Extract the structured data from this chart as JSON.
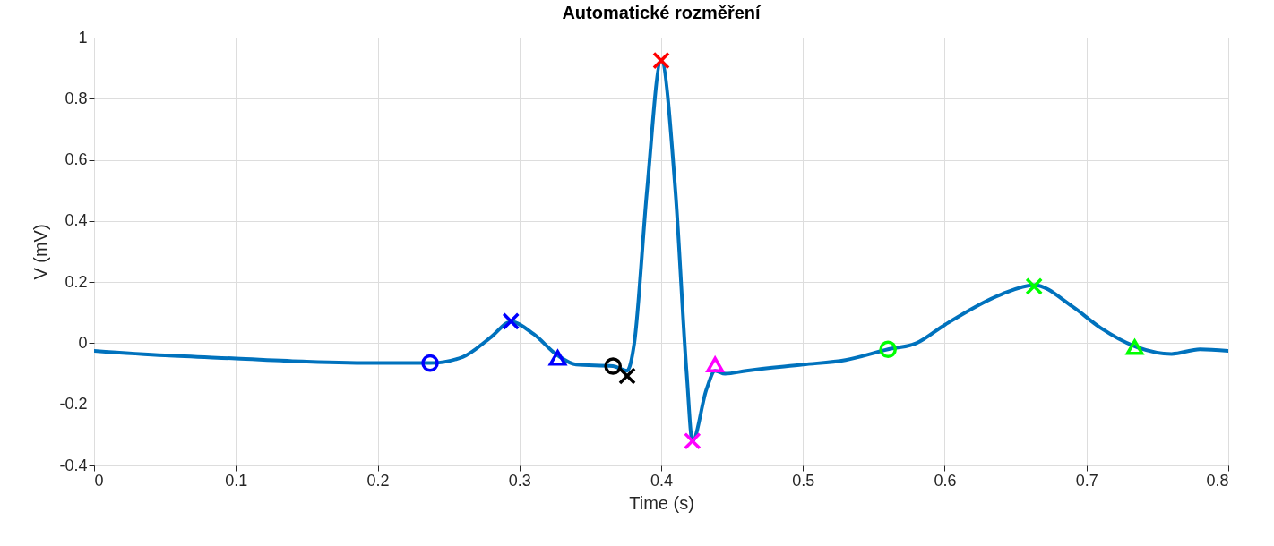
{
  "chart_data": {
    "type": "line",
    "title": "Automatické rozměření",
    "xlabel": "Time (s)",
    "ylabel": "V (mV)",
    "xlim": [
      0,
      0.8
    ],
    "xticks": [
      0,
      0.1,
      0.2,
      0.3,
      0.4,
      0.5,
      0.6,
      0.7,
      0.8
    ],
    "ylim": [
      -0.4,
      1
    ],
    "yticks": [
      -0.4,
      -0.2,
      0,
      0.2,
      0.4,
      0.6,
      0.8,
      1
    ],
    "grid": true,
    "series": [
      {
        "type": "line",
        "color": "#0072bd",
        "x": [
          0,
          0.05,
          0.1,
          0.15,
          0.2,
          0.237,
          0.26,
          0.28,
          0.294,
          0.31,
          0.327,
          0.34,
          0.366,
          0.376,
          0.381,
          0.39,
          0.4,
          0.41,
          0.418,
          0.422,
          0.432,
          0.438,
          0.445,
          0.46,
          0.5,
          0.53,
          0.56,
          0.58,
          0.6,
          0.64,
          0.663,
          0.69,
          0.71,
          0.734,
          0.76,
          0.78,
          0.8
        ],
        "values": [
          -0.025,
          -0.04,
          -0.05,
          -0.06,
          -0.065,
          -0.065,
          -0.045,
          0.02,
          0.07,
          0.03,
          -0.04,
          -0.07,
          -0.075,
          -0.09,
          0.0,
          0.5,
          0.925,
          0.5,
          -0.1,
          -0.32,
          -0.15,
          -0.09,
          -0.1,
          -0.09,
          -0.07,
          -0.055,
          -0.02,
          0.0,
          0.06,
          0.16,
          0.19,
          0.12,
          0.05,
          -0.01,
          -0.035,
          -0.02,
          -0.025
        ]
      },
      {
        "type": "scatter",
        "marker": "circle",
        "color": "#0000ff",
        "x": [
          0.237
        ],
        "values": [
          -0.065
        ]
      },
      {
        "type": "scatter",
        "marker": "cross",
        "color": "#0000ff",
        "x": [
          0.294
        ],
        "values": [
          0.072
        ]
      },
      {
        "type": "scatter",
        "marker": "triangle",
        "color": "#0000ff",
        "x": [
          0.327
        ],
        "values": [
          -0.048
        ]
      },
      {
        "type": "scatter",
        "marker": "circle",
        "color": "#000000",
        "x": [
          0.366
        ],
        "values": [
          -0.075
        ]
      },
      {
        "type": "scatter",
        "marker": "cross",
        "color": "#000000",
        "x": [
          0.376
        ],
        "values": [
          -0.107
        ]
      },
      {
        "type": "scatter",
        "marker": "cross",
        "color": "#ff0000",
        "x": [
          0.4
        ],
        "values": [
          0.925
        ]
      },
      {
        "type": "scatter",
        "marker": "cross",
        "color": "#ff00ff",
        "x": [
          0.422
        ],
        "values": [
          -0.32
        ]
      },
      {
        "type": "scatter",
        "marker": "triangle",
        "color": "#ff00ff",
        "x": [
          0.438
        ],
        "values": [
          -0.07
        ]
      },
      {
        "type": "scatter",
        "marker": "circle",
        "color": "#00ff00",
        "x": [
          0.56
        ],
        "values": [
          -0.02
        ]
      },
      {
        "type": "scatter",
        "marker": "cross",
        "color": "#00ff00",
        "x": [
          0.663
        ],
        "values": [
          0.186
        ]
      },
      {
        "type": "scatter",
        "marker": "triangle",
        "color": "#00ff00",
        "x": [
          0.734
        ],
        "values": [
          -0.013
        ]
      }
    ]
  }
}
